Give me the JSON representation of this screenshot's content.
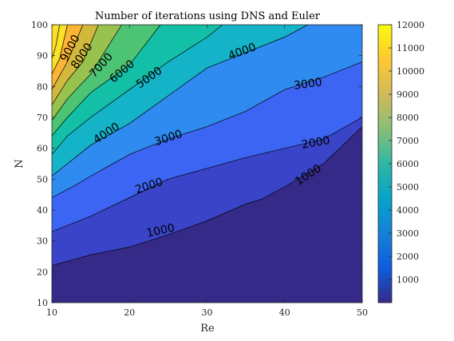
{
  "chart_data": {
    "type": "contour",
    "title": "Number of iterations using DNS and Euler",
    "xlabel": "Re",
    "ylabel": "N",
    "xlim": [
      10,
      50
    ],
    "ylim": [
      10,
      100
    ],
    "xticks": [
      10,
      20,
      30,
      40,
      50
    ],
    "yticks": [
      10,
      20,
      30,
      40,
      50,
      60,
      70,
      80,
      90,
      100
    ],
    "grid": false,
    "colormap": "parula",
    "colorbar": {
      "limits": [
        0,
        12000
      ],
      "ticks": [
        1000,
        2000,
        3000,
        4000,
        5000,
        6000,
        7000,
        8000,
        9000,
        10000,
        11000,
        12000
      ]
    },
    "band_colors": [
      "#352a87",
      "#3944c9",
      "#3d65f3",
      "#2f8bef",
      "#15b3c7",
      "#13bfa6",
      "#4cc474",
      "#98c24e",
      "#d2b93e",
      "#fbb433",
      "#f9e029"
    ],
    "contour_lines": [
      {
        "level": 1000,
        "points": [
          [
            10,
            22
          ],
          [
            15,
            25.5
          ],
          [
            20,
            28
          ],
          [
            25,
            32
          ],
          [
            30,
            36.5
          ],
          [
            35,
            42
          ],
          [
            37,
            43.5
          ],
          [
            40,
            47.5
          ],
          [
            45,
            55
          ],
          [
            50,
            67
          ]
        ]
      },
      {
        "level": 2000,
        "points": [
          [
            10,
            33
          ],
          [
            15,
            38
          ],
          [
            20,
            44
          ],
          [
            25,
            50
          ],
          [
            30,
            53.5
          ],
          [
            35,
            57
          ],
          [
            40,
            60
          ],
          [
            45,
            63
          ],
          [
            50,
            70
          ]
        ]
      },
      {
        "level": 3000,
        "points": [
          [
            10,
            44
          ],
          [
            13,
            48
          ],
          [
            15,
            51
          ],
          [
            20,
            58
          ],
          [
            25,
            63
          ],
          [
            30,
            67
          ],
          [
            35,
            72
          ],
          [
            40,
            79
          ],
          [
            45,
            83
          ],
          [
            50,
            88
          ]
        ]
      },
      {
        "level": 4000,
        "points": [
          [
            10,
            51
          ],
          [
            12,
            55
          ],
          [
            15,
            61
          ],
          [
            20,
            68
          ],
          [
            25,
            77
          ],
          [
            30,
            86
          ],
          [
            35,
            91
          ],
          [
            40,
            96
          ],
          [
            43,
            100
          ]
        ]
      },
      {
        "level": 5000,
        "points": [
          [
            10,
            58
          ],
          [
            12,
            64
          ],
          [
            15,
            70
          ],
          [
            20,
            79
          ],
          [
            25,
            88
          ],
          [
            30,
            96
          ],
          [
            32,
            100
          ]
        ]
      },
      {
        "level": 6000,
        "points": [
          [
            10,
            64
          ],
          [
            12,
            70
          ],
          [
            15,
            78
          ],
          [
            20,
            87
          ],
          [
            24,
            100
          ]
        ]
      },
      {
        "level": 7000,
        "points": [
          [
            10,
            69
          ],
          [
            12,
            76
          ],
          [
            15,
            84
          ],
          [
            19,
            100
          ]
        ]
      },
      {
        "level": 8000,
        "points": [
          [
            10,
            74
          ],
          [
            12,
            82
          ],
          [
            14,
            88
          ],
          [
            16,
            100
          ]
        ]
      },
      {
        "level": 9000,
        "points": [
          [
            10,
            79
          ],
          [
            12,
            88
          ],
          [
            14,
            100
          ]
        ]
      },
      {
        "level": 10000,
        "points": [
          [
            10,
            84
          ],
          [
            11,
            89
          ],
          [
            12,
            100
          ]
        ]
      },
      {
        "level": 11000,
        "points": [
          [
            10,
            89
          ],
          [
            10.5,
            93
          ],
          [
            11,
            100
          ]
        ]
      }
    ],
    "contour_labels": [
      {
        "text": "1000",
        "x": 24,
        "y": 33.5,
        "angle": -12
      },
      {
        "text": "1000",
        "x": 43,
        "y": 51.5,
        "angle": -33
      },
      {
        "text": "2000",
        "x": 22.5,
        "y": 48,
        "angle": -18
      },
      {
        "text": "2000",
        "x": 44,
        "y": 62,
        "angle": -10
      },
      {
        "text": "3000",
        "x": 25,
        "y": 63.5,
        "angle": -18
      },
      {
        "text": "3000",
        "x": 43,
        "y": 81,
        "angle": -8
      },
      {
        "text": "4000",
        "x": 17,
        "y": 65,
        "angle": -33
      },
      {
        "text": "4000",
        "x": 34.5,
        "y": 91.5,
        "angle": -20
      },
      {
        "text": "5000",
        "x": 22.5,
        "y": 83,
        "angle": -35
      },
      {
        "text": "6000",
        "x": 19,
        "y": 85,
        "angle": -40
      },
      {
        "text": "7000",
        "x": 16.3,
        "y": 87,
        "angle": -48
      },
      {
        "text": "8000",
        "x": 13.8,
        "y": 90,
        "angle": -55
      },
      {
        "text": "9000",
        "x": 12.3,
        "y": 92.5,
        "angle": -62
      }
    ]
  }
}
